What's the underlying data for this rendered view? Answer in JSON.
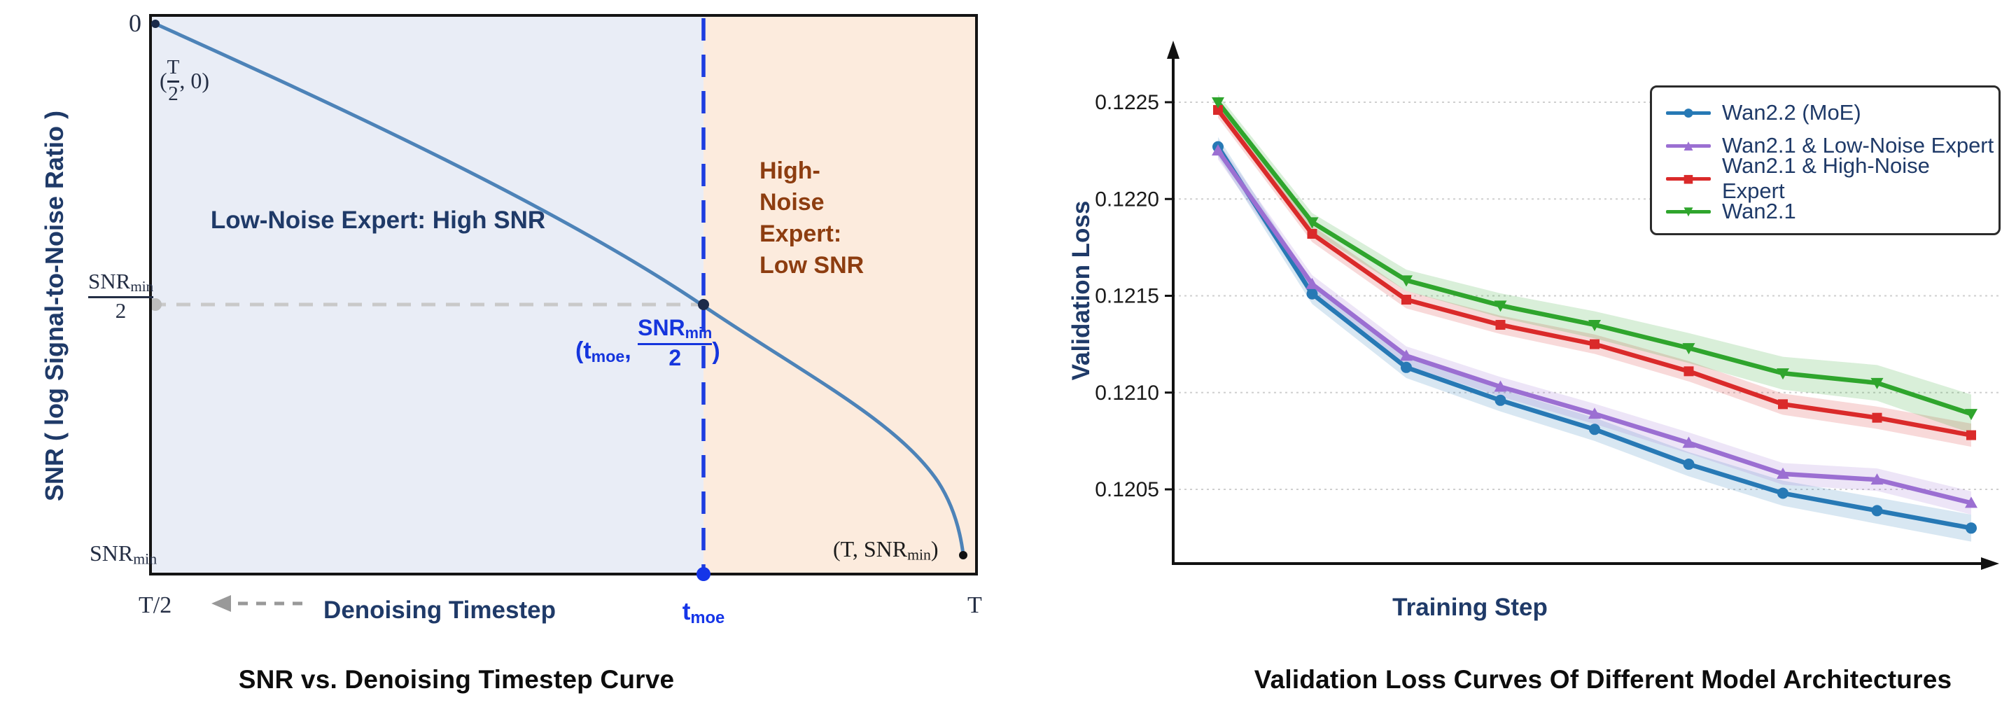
{
  "left_chart": {
    "title": "SNR vs. Denoising Timestep Curve",
    "y_axis_label": "SNR ( log Signal-to-Noise Ratio )",
    "x_axis_label": "Denoising Timestep",
    "tick_zero": "0",
    "frac_snr": {
      "num_main": "SNR",
      "num_sub": "min",
      "den": "2"
    },
    "snr_min": {
      "main": "SNR",
      "sub": "min"
    },
    "tick_t_half": "T/2",
    "tick_t_moe": {
      "main": "t",
      "sub": "moe"
    },
    "tick_T": "T",
    "region_low_noise_label": "Low-Noise Expert: High SNR",
    "region_high_noise_lines": [
      "High-",
      "Noise",
      "Expert:",
      "Low SNR"
    ],
    "pt_origin": {
      "open": "(",
      "num": "T",
      "den": "2",
      "rest": ", 0)"
    },
    "pt_end": {
      "main": "(T, SNR",
      "sub": "min",
      "close": ")"
    },
    "annot_moe": {
      "open": "(t",
      "sub": "moe",
      "comma": ",",
      "num_main": "SNR",
      "num_sub": "min",
      "den": "2",
      "close": ")"
    },
    "colors": {
      "curve": "#4d83b8",
      "low_region_bg": "#e9edf6",
      "high_region_bg": "#fcebdd",
      "dashed_vertical": "#1d3de0",
      "annotation_blue": "#1535dd",
      "high_noise_text": "#8d3d10",
      "label_navy": "#1f3a68",
      "dashed_gray": "#c9c9c9"
    }
  },
  "right_chart": {
    "title": "Validation Loss Curves Of Different Model Architectures",
    "y_axis_label": "Validation Loss",
    "x_axis_label": "Training Step"
  },
  "chart_data": {
    "type": "line",
    "title": "Validation Loss Curves Of Different Model Architectures",
    "xlabel": "Training Step",
    "ylabel": "Validation Loss",
    "x_index": [
      1,
      2,
      3,
      4,
      5,
      6,
      7,
      8,
      9
    ],
    "ylim": [
      0.12015,
      0.12265
    ],
    "y_ticks": [
      {
        "label": "0.1225",
        "value": 0.1225
      },
      {
        "label": "0.1220",
        "value": 0.122
      },
      {
        "label": "0.1215",
        "value": 0.1215
      },
      {
        "label": "0.1210",
        "value": 0.121
      },
      {
        "label": "0.1205",
        "value": 0.1205
      }
    ],
    "grid": "horizontal-dashed",
    "legend_position": "top-right",
    "series": [
      {
        "name": "Wan2.2 (MoE)",
        "color": "#2779b5",
        "marker": "circle",
        "marker_glyph": "●",
        "values": [
          0.12227,
          0.12151,
          0.12113,
          0.12096,
          0.12081,
          0.12063,
          0.12048,
          0.12039,
          0.1203
        ],
        "band_start": 5e-05,
        "band_end": 7e-05
      },
      {
        "name": "Wan2.1 & Low-Noise Expert",
        "color": "#9b6fd2",
        "marker": "triangle-up",
        "marker_glyph": "▲",
        "values": [
          0.12225,
          0.12156,
          0.12119,
          0.12103,
          0.12089,
          0.12074,
          0.12058,
          0.12055,
          0.12043
        ],
        "band_start": 4.5e-05,
        "band_end": 6e-05
      },
      {
        "name": "Wan2.1 & High-Noise Expert",
        "color": "#da2a2a",
        "marker": "square",
        "marker_glyph": "■",
        "values": [
          0.12246,
          0.12182,
          0.12148,
          0.12135,
          0.12125,
          0.12111,
          0.12094,
          0.12087,
          0.12078
        ],
        "band_start": 4e-05,
        "band_end": 6e-05
      },
      {
        "name": "Wan2.1",
        "color": "#2fa52d",
        "marker": "triangle-down",
        "marker_glyph": "▼",
        "values": [
          0.1225,
          0.12188,
          0.12158,
          0.12145,
          0.12135,
          0.12123,
          0.1211,
          0.12105,
          0.12089
        ],
        "band_start": 4e-05,
        "band_end": 0.0001
      }
    ]
  }
}
